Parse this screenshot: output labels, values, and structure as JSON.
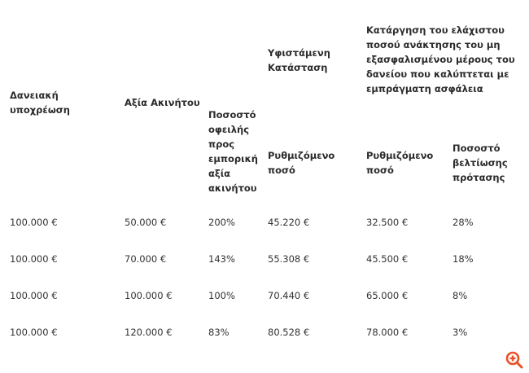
{
  "table": {
    "headers": {
      "loan": "Δανειακή\nυποχρέωση",
      "property_value": "Αξία Ακινήτου",
      "ratio": "Ποσοστό\nοφειλής\nπρος\nεμπορική\nαξία\nακινήτου",
      "current_group": "Υφιστάμενη\nΚατάσταση",
      "current_amount": "Ρυθμιζόμενο\nποσό",
      "proposal_group": "Κατάργηση του ελάχιστου\nποσού ανάκτησης του μη\nεξασφαλισμένου μέρους του\nδανείου που καλύπτεται με\nεμπράγματη ασφάλεια",
      "proposal_amount": "Ρυθμιζόμενο\nποσό",
      "improvement": "Ποσοστό\nβελτίωσης\nπρότασης"
    },
    "rows": [
      [
        "100.000 €",
        "50.000 €",
        "200%",
        "45.220 €",
        "32.500 €",
        "28%"
      ],
      [
        "100.000 €",
        "70.000 €",
        "143%",
        "55.308 €",
        "45.500 €",
        "18%"
      ],
      [
        "100.000 €",
        "100.000 €",
        "100%",
        "70.440 €",
        "65.000 €",
        "8%"
      ],
      [
        "100.000 €",
        "120.000 €",
        "83%",
        "80.528 €",
        "78.000 €",
        "3%"
      ]
    ]
  },
  "zoom_icon": {
    "name": "zoom-in-icon",
    "color": "#e8512a"
  }
}
